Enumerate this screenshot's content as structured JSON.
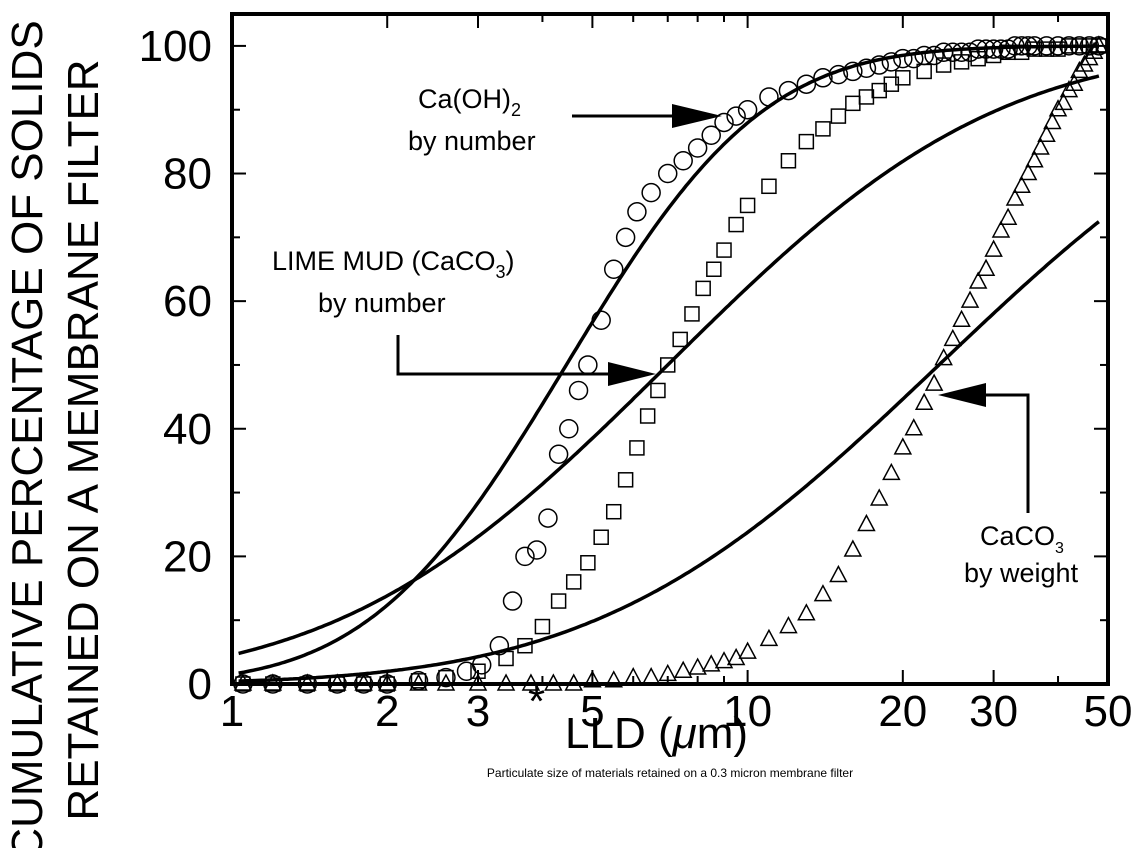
{
  "chart_data": {
    "type": "scatter",
    "title": "",
    "xlabel": "* LLD (μm)",
    "ylabel_line1": "CUMULATIVE PERCENTAGE OF SOLIDS",
    "ylabel_line2": "RETAINED ON A MEMBRANE FILTER",
    "caption": "Particulate size of materials retained on a 0.3 micron membrane filter",
    "x_scale": "log",
    "xlim": [
      1,
      50
    ],
    "ylim": [
      0,
      105
    ],
    "x_ticks": [
      1,
      2,
      3,
      5,
      10,
      20,
      30,
      50
    ],
    "x_tick_labels": [
      "1",
      "2",
      "3",
      "5",
      "10",
      "20",
      "30",
      "50"
    ],
    "y_ticks": [
      0,
      20,
      40,
      60,
      80,
      100
    ],
    "y_tick_labels": [
      "0",
      "20",
      "40",
      "60",
      "80",
      "100"
    ],
    "grid": false,
    "legend": "none",
    "series": [
      {
        "marker": "circle",
        "x": [
          1.05,
          1.2,
          1.4,
          1.6,
          1.8,
          2.0,
          2.3,
          2.6,
          2.85,
          3.05,
          3.3,
          3.5,
          3.7,
          3.9,
          4.1,
          4.3,
          4.5,
          4.7,
          4.9,
          5.2,
          5.5,
          5.8,
          6.1,
          6.5,
          7.0,
          7.5,
          8.0,
          8.5,
          9.0,
          9.5,
          10.0,
          11.0,
          12.0,
          13.0,
          14.0,
          15.0,
          16.0,
          17.0,
          18.0,
          19.0,
          20.0,
          21.0,
          22.0,
          23.0,
          24.0,
          25.0,
          26.0,
          27.0,
          28.0,
          29.0,
          30.0,
          31.0,
          32.0,
          33.0,
          34.0,
          35.0,
          36.0,
          38.0,
          40.0,
          42.0,
          44.0,
          46.0,
          48.0
        ],
        "y": [
          0,
          0,
          0,
          0,
          0,
          0,
          0.5,
          1,
          2,
          3,
          6,
          13,
          20,
          21,
          26,
          36,
          40,
          46,
          50,
          57,
          65,
          70,
          74,
          77,
          80,
          82,
          84,
          86,
          88,
          89,
          90,
          92,
          93,
          94,
          95,
          95.5,
          96,
          96.5,
          97,
          97.5,
          98,
          98,
          98.5,
          98.5,
          99,
          99,
          99,
          99,
          99.5,
          99.5,
          99.5,
          99.5,
          99.5,
          100,
          100,
          100,
          100,
          100,
          100,
          100,
          100,
          100,
          100
        ]
      },
      {
        "marker": "square",
        "x": [
          1.05,
          1.2,
          1.4,
          1.6,
          1.8,
          2.0,
          2.3,
          2.6,
          3.0,
          3.4,
          3.7,
          4.0,
          4.3,
          4.6,
          4.9,
          5.2,
          5.5,
          5.8,
          6.1,
          6.4,
          6.7,
          7.0,
          7.4,
          7.8,
          8.2,
          8.6,
          9.0,
          9.5,
          10.0,
          11.0,
          12.0,
          13.0,
          14.0,
          15.0,
          16.0,
          17.0,
          18.0,
          19.0,
          20.0,
          22.0,
          24.0,
          26.0,
          28.0,
          30.0,
          32.0,
          34.0,
          36.0,
          38.0,
          40.0,
          42.0,
          44.0,
          46.0,
          48.0
        ],
        "y": [
          0,
          0,
          0,
          0,
          0,
          0,
          0.5,
          1,
          2,
          4,
          6,
          9,
          13,
          16,
          19,
          23,
          27,
          32,
          37,
          42,
          46,
          50,
          54,
          58,
          62,
          65,
          68,
          72,
          75,
          78,
          82,
          85,
          87,
          89,
          91,
          92,
          93,
          94,
          95,
          96,
          97,
          97.5,
          98,
          98.5,
          99,
          99,
          99.5,
          99.5,
          99.5,
          100,
          100,
          100,
          100
        ]
      },
      {
        "marker": "triangle",
        "x": [
          1.05,
          1.2,
          1.4,
          1.6,
          1.8,
          2.0,
          2.3,
          2.6,
          3.0,
          3.4,
          3.8,
          4.2,
          4.6,
          5.0,
          5.5,
          6.0,
          6.5,
          7.0,
          7.5,
          8.0,
          8.5,
          9.0,
          9.5,
          10.0,
          11.0,
          12.0,
          13.0,
          14.0,
          15.0,
          16.0,
          17.0,
          18.0,
          19.0,
          20.0,
          21.0,
          22.0,
          23.0,
          24.0,
          25.0,
          26.0,
          27.0,
          28.0,
          29.0,
          30.0,
          31.0,
          32.0,
          33.0,
          34.0,
          35.0,
          36.0,
          37.0,
          38.0,
          39.0,
          40.0,
          41.0,
          42.0,
          43.0,
          44.0,
          45.0,
          46.0,
          47.0,
          48.0
        ],
        "y": [
          0,
          0,
          0,
          0,
          0,
          0,
          0,
          0,
          0,
          0,
          0,
          0,
          0,
          0.5,
          0.5,
          1,
          1,
          1.5,
          2,
          2.5,
          3,
          3.5,
          4,
          5,
          7,
          9,
          11,
          14,
          17,
          21,
          25,
          29,
          33,
          37,
          40,
          44,
          47,
          51,
          54,
          57,
          60,
          63,
          65,
          68,
          71,
          73,
          76,
          78,
          80,
          82,
          84,
          86,
          88,
          90,
          91,
          93,
          94,
          96,
          97,
          98,
          99,
          100
        ]
      }
    ],
    "curves": [
      {
        "median": 4.45,
        "sigma": 0.3
      },
      {
        "median": 7.0,
        "sigma": 0.5
      },
      {
        "median": 23.5,
        "sigma": 0.52
      }
    ],
    "annotations": [
      {
        "lines": [
          "Ca(OH)",
          "by number"
        ],
        "subscript": "2"
      },
      {
        "lines": [
          "LIME MUD (CaCO",
          "by number"
        ],
        "subscript": "3",
        "suffix": ")"
      },
      {
        "lines": [
          "CaCO",
          "by weight"
        ],
        "subscript": "3"
      }
    ]
  }
}
